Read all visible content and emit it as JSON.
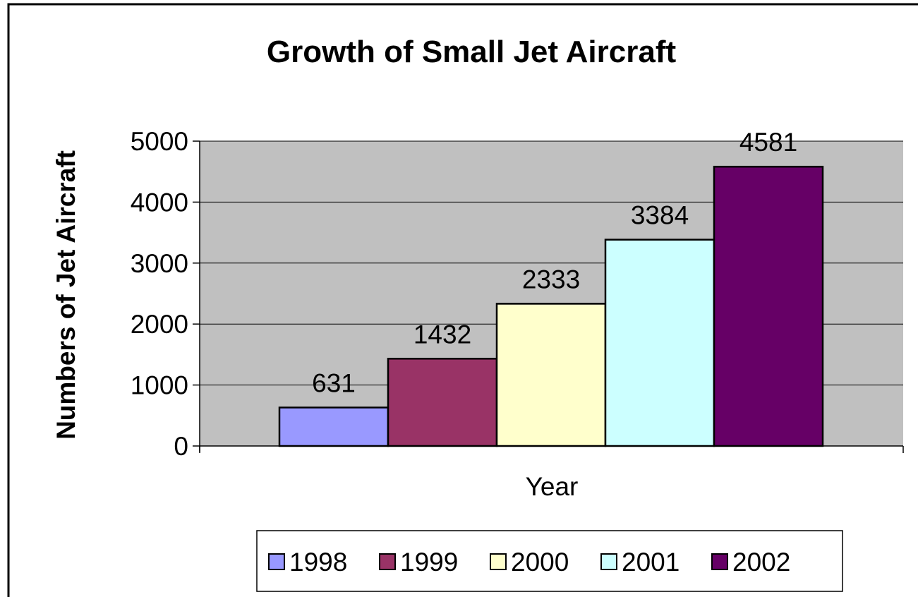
{
  "chart_data": {
    "type": "bar",
    "title": "Growth of Small Jet Aircraft",
    "xlabel": "Year",
    "ylabel": "Numbers of Jet Aircraft",
    "ylim": [
      0,
      5000
    ],
    "yticks": [
      "0",
      "1000",
      "2000",
      "3000",
      "4000",
      "5000"
    ],
    "grid": true,
    "legend_position": "bottom",
    "series": [
      {
        "name": "1998",
        "value": 631,
        "label": "631",
        "color": "#9999FF"
      },
      {
        "name": "1999",
        "value": 1432,
        "label": "1432",
        "color": "#993366"
      },
      {
        "name": "2000",
        "value": 2333,
        "label": "2333",
        "color": "#FFFFCC"
      },
      {
        "name": "2001",
        "value": 3384,
        "label": "3384",
        "color": "#CCFFFF"
      },
      {
        "name": "2002",
        "value": 4581,
        "label": "4581",
        "color": "#660066"
      }
    ],
    "plot_background": "#C0C0C0"
  }
}
